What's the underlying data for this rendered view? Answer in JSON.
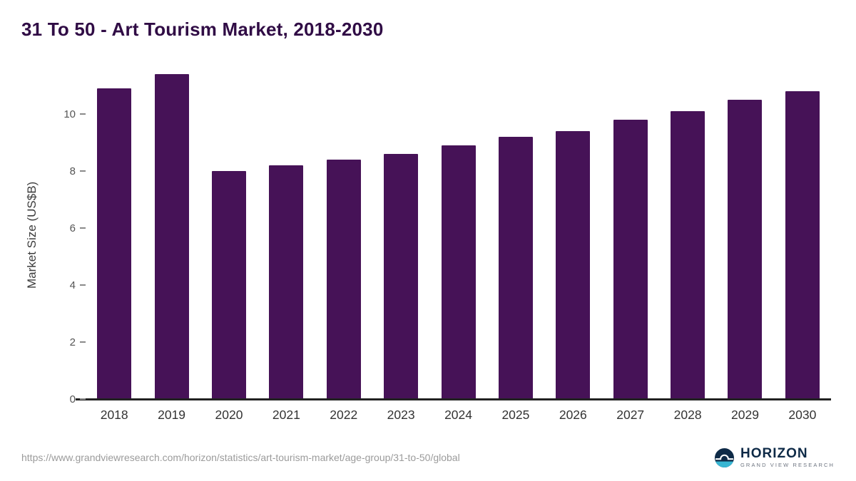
{
  "chart_data": {
    "type": "bar",
    "title": "31 To 50 - Art Tourism Market, 2018-2030",
    "xlabel": "",
    "ylabel": "Market Size (US$B)",
    "categories": [
      "2018",
      "2019",
      "2020",
      "2021",
      "2022",
      "2023",
      "2024",
      "2025",
      "2026",
      "2027",
      "2028",
      "2029",
      "2030"
    ],
    "values": [
      10.9,
      11.4,
      8.0,
      8.2,
      8.4,
      8.6,
      8.9,
      9.2,
      9.4,
      9.8,
      10.1,
      10.5,
      10.8
    ],
    "yticks": [
      0,
      2,
      4,
      6,
      8,
      10
    ],
    "ylim": [
      0,
      11.5
    ],
    "grid": false,
    "legend": "none"
  },
  "footer": {
    "source_url": "https://www.grandviewresearch.com/horizon/statistics/art-tourism-market/age-group/31-to-50/global"
  },
  "logo": {
    "name": "HORIZON",
    "subtitle": "GRAND VIEW RESEARCH"
  },
  "colors": {
    "bar": "#461257",
    "title": "#300c45",
    "axis": "#222222",
    "logo_navy": "#0e2a47",
    "logo_teal": "#38b6d3"
  }
}
